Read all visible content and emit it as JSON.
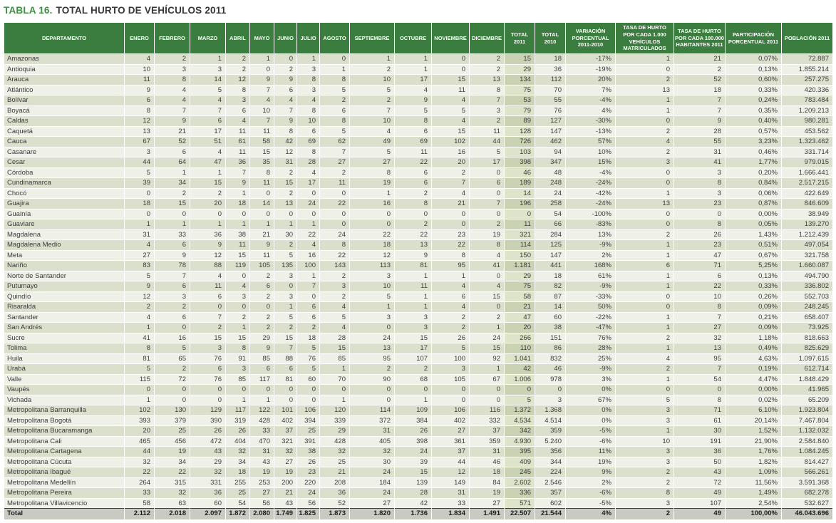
{
  "title": {
    "prefix": "TABLA 16.",
    "main": "TOTAL HURTO DE VEHÍCULOS 2011"
  },
  "table": {
    "columns": [
      {
        "key": "departamento",
        "label": "DEPARTAMENTO"
      },
      {
        "key": "enero",
        "label": "ENERO"
      },
      {
        "key": "febrero",
        "label": "FEBRERO"
      },
      {
        "key": "marzo",
        "label": "MARZO"
      },
      {
        "key": "abril",
        "label": "ABRIL"
      },
      {
        "key": "mayo",
        "label": "MAYO"
      },
      {
        "key": "junio",
        "label": "JUNIO"
      },
      {
        "key": "julio",
        "label": "JULIO"
      },
      {
        "key": "agosto",
        "label": "AGOSTO"
      },
      {
        "key": "septiembre",
        "label": "SEPTIEMBRE"
      },
      {
        "key": "octubre",
        "label": "OCTUBRE"
      },
      {
        "key": "noviembre",
        "label": "NOVIEMBRE"
      },
      {
        "key": "diciembre",
        "label": "DICIEMBRE"
      },
      {
        "key": "total_2011",
        "label": "TOTAL 2011"
      },
      {
        "key": "total_2010",
        "label": "TOTAL 2010"
      },
      {
        "key": "variacion",
        "label": "VARIACIÓN PORCENTUAL 2011-2010"
      },
      {
        "key": "tasa_1000",
        "label": "TASA DE HURTO POR CADA 1.000 VEHÍCULOS MATRICULADOS"
      },
      {
        "key": "tasa_100000",
        "label": "TASA DE HURTO POR CADA 100.000 HABITANTES 2011"
      },
      {
        "key": "participacion",
        "label": "PARTICIPACIÓN PORCENTUAL 2011"
      },
      {
        "key": "poblacion",
        "label": "POBLACIÓN 2011"
      }
    ],
    "rows": [
      [
        "Amazonas",
        "4",
        "2",
        "1",
        "2",
        "1",
        "0",
        "1",
        "0",
        "1",
        "1",
        "0",
        "2",
        "15",
        "18",
        "-17%",
        "1",
        "21",
        "0,07%",
        "72.887"
      ],
      [
        "Antioquia",
        "10",
        "3",
        "3",
        "2",
        "0",
        "2",
        "3",
        "1",
        "2",
        "1",
        "0",
        "2",
        "29",
        "36",
        "-19%",
        "0",
        "2",
        "0,13%",
        "1.855.214"
      ],
      [
        "Arauca",
        "11",
        "8",
        "14",
        "12",
        "9",
        "9",
        "8",
        "8",
        "10",
        "17",
        "15",
        "13",
        "134",
        "112",
        "20%",
        "2",
        "52",
        "0,60%",
        "257.275"
      ],
      [
        "Atlántico",
        "9",
        "4",
        "5",
        "8",
        "7",
        "6",
        "3",
        "5",
        "5",
        "4",
        "11",
        "8",
        "75",
        "70",
        "7%",
        "13",
        "18",
        "0,33%",
        "420.336"
      ],
      [
        "Bolívar",
        "6",
        "4",
        "4",
        "3",
        "4",
        "4",
        "4",
        "2",
        "2",
        "9",
        "4",
        "7",
        "53",
        "55",
        "-4%",
        "1",
        "7",
        "0,24%",
        "783.484"
      ],
      [
        "Boyacá",
        "8",
        "7",
        "7",
        "6",
        "10",
        "7",
        "8",
        "6",
        "7",
        "5",
        "5",
        "3",
        "79",
        "76",
        "4%",
        "1",
        "7",
        "0,35%",
        "1.209.213"
      ],
      [
        "Caldas",
        "12",
        "9",
        "6",
        "4",
        "7",
        "9",
        "10",
        "8",
        "10",
        "8",
        "4",
        "2",
        "89",
        "127",
        "-30%",
        "0",
        "9",
        "0,40%",
        "980.281"
      ],
      [
        "Caquetá",
        "13",
        "21",
        "17",
        "11",
        "11",
        "8",
        "6",
        "5",
        "4",
        "6",
        "15",
        "11",
        "128",
        "147",
        "-13%",
        "2",
        "28",
        "0,57%",
        "453.562"
      ],
      [
        "Cauca",
        "67",
        "52",
        "51",
        "61",
        "58",
        "42",
        "69",
        "62",
        "49",
        "69",
        "102",
        "44",
        "726",
        "462",
        "57%",
        "4",
        "55",
        "3,23%",
        "1.323.462"
      ],
      [
        "Casanare",
        "3",
        "6",
        "4",
        "11",
        "15",
        "12",
        "8",
        "7",
        "5",
        "11",
        "16",
        "5",
        "103",
        "94",
        "10%",
        "2",
        "31",
        "0,46%",
        "331.714"
      ],
      [
        "Cesar",
        "44",
        "64",
        "47",
        "36",
        "35",
        "31",
        "28",
        "27",
        "27",
        "22",
        "20",
        "17",
        "398",
        "347",
        "15%",
        "3",
        "41",
        "1,77%",
        "979.015"
      ],
      [
        "Córdoba",
        "5",
        "1",
        "1",
        "7",
        "8",
        "2",
        "4",
        "2",
        "8",
        "6",
        "2",
        "0",
        "46",
        "48",
        "-4%",
        "0",
        "3",
        "0,20%",
        "1.666.441"
      ],
      [
        "Cundinamarca",
        "39",
        "34",
        "15",
        "9",
        "11",
        "15",
        "17",
        "11",
        "19",
        "6",
        "7",
        "6",
        "189",
        "248",
        "-24%",
        "0",
        "8",
        "0,84%",
        "2.517.215"
      ],
      [
        "Chocó",
        "0",
        "2",
        "2",
        "1",
        "0",
        "2",
        "0",
        "0",
        "1",
        "2",
        "4",
        "0",
        "14",
        "24",
        "-42%",
        "1",
        "3",
        "0,06%",
        "422.649"
      ],
      [
        "Guajira",
        "18",
        "15",
        "20",
        "18",
        "14",
        "13",
        "24",
        "22",
        "16",
        "8",
        "21",
        "7",
        "196",
        "258",
        "-24%",
        "13",
        "23",
        "0,87%",
        "846.609"
      ],
      [
        "Guainía",
        "0",
        "0",
        "0",
        "0",
        "0",
        "0",
        "0",
        "0",
        "0",
        "0",
        "0",
        "0",
        "0",
        "54",
        "-100%",
        "0",
        "0",
        "0,00%",
        "38.949"
      ],
      [
        "Guaviare",
        "1",
        "1",
        "1",
        "1",
        "1",
        "1",
        "1",
        "0",
        "0",
        "2",
        "0",
        "2",
        "11",
        "66",
        "-83%",
        "0",
        "8",
        "0,05%",
        "139.270"
      ],
      [
        "Magdalena",
        "31",
        "33",
        "36",
        "38",
        "21",
        "30",
        "22",
        "24",
        "22",
        "22",
        "23",
        "19",
        "321",
        "284",
        "13%",
        "2",
        "26",
        "1,43%",
        "1.212.439"
      ],
      [
        "Magdalena Medio",
        "4",
        "6",
        "9",
        "11",
        "9",
        "2",
        "4",
        "8",
        "18",
        "13",
        "22",
        "8",
        "114",
        "125",
        "-9%",
        "1",
        "23",
        "0,51%",
        "497.054"
      ],
      [
        "Meta",
        "27",
        "9",
        "12",
        "15",
        "11",
        "5",
        "16",
        "22",
        "12",
        "9",
        "8",
        "4",
        "150",
        "147",
        "2%",
        "1",
        "47",
        "0,67%",
        "321.758"
      ],
      [
        "Nariño",
        "83",
        "78",
        "88",
        "119",
        "105",
        "135",
        "100",
        "143",
        "113",
        "81",
        "95",
        "41",
        "1.181",
        "441",
        "168%",
        "6",
        "71",
        "5,25%",
        "1.660.087"
      ],
      [
        "Norte de Santander",
        "5",
        "7",
        "4",
        "0",
        "2",
        "3",
        "1",
        "2",
        "3",
        "1",
        "1",
        "0",
        "29",
        "18",
        "61%",
        "1",
        "6",
        "0,13%",
        "494.790"
      ],
      [
        "Putumayo",
        "9",
        "6",
        "11",
        "4",
        "6",
        "0",
        "7",
        "3",
        "10",
        "11",
        "4",
        "4",
        "75",
        "82",
        "-9%",
        "1",
        "22",
        "0,33%",
        "336.802"
      ],
      [
        "Quindío",
        "12",
        "3",
        "6",
        "3",
        "2",
        "3",
        "0",
        "2",
        "5",
        "1",
        "6",
        "15",
        "58",
        "87",
        "-33%",
        "0",
        "10",
        "0,26%",
        "552.703"
      ],
      [
        "Risaralda",
        "2",
        "2",
        "0",
        "0",
        "0",
        "1",
        "6",
        "4",
        "1",
        "1",
        "4",
        "0",
        "21",
        "14",
        "50%",
        "0",
        "8",
        "0,09%",
        "248.245"
      ],
      [
        "Santander",
        "4",
        "6",
        "7",
        "2",
        "2",
        "5",
        "6",
        "5",
        "3",
        "3",
        "2",
        "2",
        "47",
        "60",
        "-22%",
        "1",
        "7",
        "0,21%",
        "658.407"
      ],
      [
        "San Andrés",
        "1",
        "0",
        "2",
        "1",
        "2",
        "2",
        "2",
        "4",
        "0",
        "3",
        "2",
        "1",
        "20",
        "38",
        "-47%",
        "1",
        "27",
        "0,09%",
        "73.925"
      ],
      [
        "Sucre",
        "41",
        "16",
        "15",
        "15",
        "29",
        "15",
        "18",
        "28",
        "24",
        "15",
        "26",
        "24",
        "266",
        "151",
        "76%",
        "2",
        "32",
        "1,18%",
        "818.663"
      ],
      [
        "Tolima",
        "8",
        "5",
        "3",
        "8",
        "9",
        "7",
        "5",
        "15",
        "13",
        "17",
        "5",
        "15",
        "110",
        "86",
        "28%",
        "1",
        "13",
        "0,49%",
        "825.629"
      ],
      [
        "Huila",
        "81",
        "65",
        "76",
        "91",
        "85",
        "88",
        "76",
        "85",
        "95",
        "107",
        "100",
        "92",
        "1.041",
        "832",
        "25%",
        "4",
        "95",
        "4,63%",
        "1.097.615"
      ],
      [
        "Urabá",
        "5",
        "2",
        "6",
        "3",
        "6",
        "6",
        "5",
        "1",
        "2",
        "2",
        "3",
        "1",
        "42",
        "46",
        "-9%",
        "2",
        "7",
        "0,19%",
        "612.714"
      ],
      [
        "Valle",
        "115",
        "72",
        "76",
        "85",
        "117",
        "81",
        "60",
        "70",
        "90",
        "68",
        "105",
        "67",
        "1.006",
        "978",
        "3%",
        "1",
        "54",
        "4,47%",
        "1.848.429"
      ],
      [
        "Vaupés",
        "0",
        "0",
        "0",
        "0",
        "0",
        "0",
        "0",
        "0",
        "0",
        "0",
        "0",
        "0",
        "0",
        "0",
        "0%",
        "0",
        "0",
        "0,00%",
        "41.965"
      ],
      [
        "Vichada",
        "1",
        "0",
        "0",
        "1",
        "1",
        "0",
        "0",
        "1",
        "0",
        "1",
        "0",
        "0",
        "5",
        "3",
        "67%",
        "5",
        "8",
        "0,02%",
        "65.209"
      ],
      [
        "Metropolitana Barranquilla",
        "102",
        "130",
        "129",
        "117",
        "122",
        "101",
        "106",
        "120",
        "114",
        "109",
        "106",
        "116",
        "1.372",
        "1.368",
        "0%",
        "3",
        "71",
        "6,10%",
        "1.923.804"
      ],
      [
        "Metropolitana Bogotá",
        "393",
        "379",
        "390",
        "319",
        "428",
        "402",
        "394",
        "339",
        "372",
        "384",
        "402",
        "332",
        "4.534",
        "4.514",
        "0%",
        "3",
        "61",
        "20,14%",
        "7.467.804"
      ],
      [
        "Metropolitana Bucaramanga",
        "20",
        "25",
        "26",
        "26",
        "33",
        "37",
        "25",
        "29",
        "31",
        "26",
        "27",
        "37",
        "342",
        "359",
        "-5%",
        "1",
        "30",
        "1,52%",
        "1.132.032"
      ],
      [
        "Metropolitana Cali",
        "465",
        "456",
        "472",
        "404",
        "470",
        "321",
        "391",
        "428",
        "405",
        "398",
        "361",
        "359",
        "4.930",
        "5.240",
        "-6%",
        "10",
        "191",
        "21,90%",
        "2.584.840"
      ],
      [
        "Metropolitana Cartagena",
        "44",
        "19",
        "43",
        "32",
        "31",
        "32",
        "38",
        "32",
        "32",
        "24",
        "37",
        "31",
        "395",
        "356",
        "11%",
        "3",
        "36",
        "1,76%",
        "1.084.245"
      ],
      [
        "Metropolitana Cúcuta",
        "32",
        "34",
        "29",
        "34",
        "43",
        "27",
        "26",
        "25",
        "30",
        "39",
        "44",
        "46",
        "409",
        "344",
        "19%",
        "3",
        "50",
        "1,82%",
        "814.427"
      ],
      [
        "Metropolitana Ibagué",
        "22",
        "22",
        "32",
        "18",
        "19",
        "19",
        "23",
        "21",
        "24",
        "15",
        "12",
        "18",
        "245",
        "224",
        "9%",
        "2",
        "43",
        "1,09%",
        "566.261"
      ],
      [
        "Metropolitana Medellín",
        "264",
        "315",
        "331",
        "255",
        "253",
        "200",
        "220",
        "208",
        "184",
        "139",
        "149",
        "84",
        "2.602",
        "2.546",
        "2%",
        "2",
        "72",
        "11,56%",
        "3.591.368"
      ],
      [
        "Metropolitana Pereira",
        "33",
        "32",
        "36",
        "25",
        "27",
        "21",
        "24",
        "36",
        "24",
        "28",
        "31",
        "19",
        "336",
        "357",
        "-6%",
        "8",
        "49",
        "1,49%",
        "682.278"
      ],
      [
        "Metropolitana Villavicencio",
        "58",
        "63",
        "60",
        "54",
        "56",
        "43",
        "56",
        "52",
        "27",
        "42",
        "33",
        "27",
        "571",
        "602",
        "-5%",
        "3",
        "107",
        "2,54%",
        "532.627"
      ]
    ],
    "total_row": [
      "Total",
      "2.112",
      "2.018",
      "2.097",
      "1.872",
      "2.080",
      "1.749",
      "1.825",
      "1.873",
      "1.820",
      "1.736",
      "1.834",
      "1.491",
      "22.507",
      "21.544",
      "4%",
      "2",
      "49",
      "100,00%",
      "46.043.696"
    ]
  }
}
